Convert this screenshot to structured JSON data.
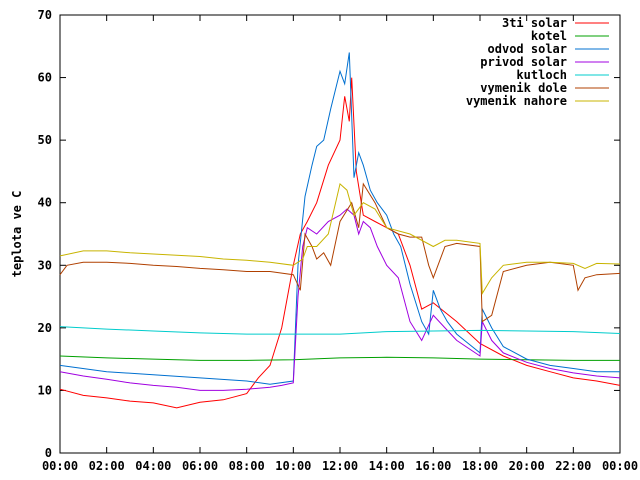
{
  "chart_data": {
    "type": "line",
    "title": "",
    "xlabel": "",
    "ylabel": "teplota ve C",
    "xlim": [
      "00:00",
      "24:00"
    ],
    "ylim": [
      0,
      70
    ],
    "x_ticks": [
      "00:00",
      "02:00",
      "04:00",
      "06:00",
      "08:00",
      "10:00",
      "12:00",
      "14:00",
      "16:00",
      "18:00",
      "20:00",
      "22:00",
      "00:00"
    ],
    "y_ticks": [
      0,
      10,
      20,
      30,
      40,
      50,
      60,
      70
    ],
    "grid": false,
    "legend_position": "top-right",
    "series": [
      {
        "name": "3ti solar",
        "color": "#ff0000",
        "points": [
          [
            0,
            10.2
          ],
          [
            1,
            9.2
          ],
          [
            2,
            8.8
          ],
          [
            3,
            8.3
          ],
          [
            4,
            8.0
          ],
          [
            5,
            7.2
          ],
          [
            6,
            8.1
          ],
          [
            7,
            8.5
          ],
          [
            8,
            9.5
          ],
          [
            8.5,
            12
          ],
          [
            9,
            14
          ],
          [
            9.5,
            20
          ],
          [
            10,
            30
          ],
          [
            10.3,
            35
          ],
          [
            10.6,
            37
          ],
          [
            11,
            40
          ],
          [
            11.5,
            46
          ],
          [
            12,
            50
          ],
          [
            12.2,
            57
          ],
          [
            12.4,
            53
          ],
          [
            12.5,
            60
          ],
          [
            12.7,
            45
          ],
          [
            13,
            38
          ],
          [
            13.5,
            37
          ],
          [
            14,
            36
          ],
          [
            14.5,
            35
          ],
          [
            15,
            30
          ],
          [
            15.5,
            23
          ],
          [
            16,
            24
          ],
          [
            17,
            21
          ],
          [
            18,
            17.5
          ],
          [
            19,
            15.5
          ],
          [
            20,
            14
          ],
          [
            21,
            13
          ],
          [
            22,
            12
          ],
          [
            23,
            11.5
          ],
          [
            24,
            10.8
          ]
        ]
      },
      {
        "name": "kotel",
        "color": "#00a000",
        "points": [
          [
            0,
            15.5
          ],
          [
            2,
            15.2
          ],
          [
            4,
            15.0
          ],
          [
            6,
            14.8
          ],
          [
            8,
            14.8
          ],
          [
            10,
            14.9
          ],
          [
            12,
            15.2
          ],
          [
            14,
            15.3
          ],
          [
            16,
            15.2
          ],
          [
            18,
            15.0
          ],
          [
            20,
            14.9
          ],
          [
            22,
            14.8
          ],
          [
            24,
            14.8
          ]
        ]
      },
      {
        "name": "odvod solar",
        "color": "#0070d0",
        "points": [
          [
            0,
            14
          ],
          [
            2,
            13
          ],
          [
            4,
            12.5
          ],
          [
            6,
            12
          ],
          [
            8,
            11.5
          ],
          [
            9,
            11
          ],
          [
            10,
            11.5
          ],
          [
            10.2,
            30
          ],
          [
            10.5,
            41
          ],
          [
            10.8,
            46
          ],
          [
            11,
            49
          ],
          [
            11.3,
            50
          ],
          [
            11.6,
            55
          ],
          [
            12,
            61
          ],
          [
            12.2,
            59
          ],
          [
            12.4,
            64
          ],
          [
            12.6,
            44
          ],
          [
            12.8,
            48
          ],
          [
            13,
            46
          ],
          [
            13.3,
            42
          ],
          [
            13.6,
            40
          ],
          [
            14,
            38
          ],
          [
            14.3,
            35
          ],
          [
            14.6,
            33
          ],
          [
            15,
            27
          ],
          [
            15.5,
            21
          ],
          [
            15.8,
            19
          ],
          [
            16,
            26
          ],
          [
            16.3,
            23
          ],
          [
            16.6,
            21
          ],
          [
            17,
            19
          ],
          [
            17.5,
            17.5
          ],
          [
            18,
            16
          ],
          [
            18.1,
            23
          ],
          [
            18.5,
            20
          ],
          [
            19,
            17
          ],
          [
            20,
            15
          ],
          [
            21,
            14
          ],
          [
            22,
            13.5
          ],
          [
            23,
            13
          ],
          [
            24,
            13
          ]
        ]
      },
      {
        "name": "privod solar",
        "color": "#a000e0",
        "points": [
          [
            0,
            13
          ],
          [
            1,
            12.3
          ],
          [
            2,
            11.8
          ],
          [
            3,
            11.2
          ],
          [
            4,
            10.8
          ],
          [
            5,
            10.5
          ],
          [
            6,
            10
          ],
          [
            7,
            10
          ],
          [
            8,
            10.2
          ],
          [
            9,
            10.5
          ],
          [
            9.5,
            10.8
          ],
          [
            10,
            11.2
          ],
          [
            10.2,
            25
          ],
          [
            10.4,
            33
          ],
          [
            10.6,
            36
          ],
          [
            11,
            35
          ],
          [
            11.5,
            37
          ],
          [
            12,
            38
          ],
          [
            12.3,
            39
          ],
          [
            12.6,
            38
          ],
          [
            12.8,
            35
          ],
          [
            13,
            37
          ],
          [
            13.3,
            36
          ],
          [
            13.6,
            33
          ],
          [
            14,
            30
          ],
          [
            14.5,
            28
          ],
          [
            15,
            21
          ],
          [
            15.5,
            18
          ],
          [
            16,
            22
          ],
          [
            16.5,
            20
          ],
          [
            17,
            18
          ],
          [
            18,
            15.5
          ],
          [
            18.1,
            21
          ],
          [
            18.5,
            18
          ],
          [
            19,
            16
          ],
          [
            20,
            14.5
          ],
          [
            21,
            13.5
          ],
          [
            22,
            12.8
          ],
          [
            23,
            12.3
          ],
          [
            24,
            12
          ]
        ]
      },
      {
        "name": "kutloch",
        "color": "#00cccc",
        "points": [
          [
            0,
            20.2
          ],
          [
            2,
            19.8
          ],
          [
            4,
            19.5
          ],
          [
            6,
            19.2
          ],
          [
            8,
            19.0
          ],
          [
            10,
            19.0
          ],
          [
            12,
            19.0
          ],
          [
            14,
            19.4
          ],
          [
            16,
            19.5
          ],
          [
            18,
            19.6
          ],
          [
            20,
            19.5
          ],
          [
            22,
            19.4
          ],
          [
            24,
            19.1
          ]
        ]
      },
      {
        "name": "vymenik dole",
        "color": "#b04000",
        "points": [
          [
            0,
            28.5
          ],
          [
            0.3,
            30
          ],
          [
            1,
            30.5
          ],
          [
            2,
            30.5
          ],
          [
            3,
            30.3
          ],
          [
            4,
            30
          ],
          [
            5,
            29.8
          ],
          [
            6,
            29.5
          ],
          [
            7,
            29.3
          ],
          [
            8,
            29
          ],
          [
            9,
            29
          ],
          [
            10,
            28.5
          ],
          [
            10.3,
            26
          ],
          [
            10.5,
            35
          ],
          [
            10.8,
            33
          ],
          [
            11,
            31
          ],
          [
            11.3,
            32
          ],
          [
            11.6,
            30
          ],
          [
            12,
            37
          ],
          [
            12.5,
            40
          ],
          [
            12.8,
            36
          ],
          [
            13,
            43
          ],
          [
            13.5,
            40
          ],
          [
            14,
            36
          ],
          [
            14.5,
            35
          ],
          [
            15,
            34.5
          ],
          [
            15.5,
            34.5
          ],
          [
            15.8,
            30
          ],
          [
            16,
            28
          ],
          [
            16.5,
            33
          ],
          [
            17,
            33.5
          ],
          [
            18,
            33
          ],
          [
            18.1,
            21
          ],
          [
            18.5,
            22
          ],
          [
            19,
            29
          ],
          [
            20,
            30
          ],
          [
            21,
            30.5
          ],
          [
            22,
            30
          ],
          [
            22.2,
            26
          ],
          [
            22.5,
            28
          ],
          [
            23,
            28.5
          ],
          [
            24,
            28.7
          ]
        ]
      },
      {
        "name": "vymenik nahore",
        "color": "#c8b400",
        "points": [
          [
            0,
            31.5
          ],
          [
            1,
            32.3
          ],
          [
            2,
            32.3
          ],
          [
            3,
            32.0
          ],
          [
            4,
            31.8
          ],
          [
            5,
            31.6
          ],
          [
            6,
            31.4
          ],
          [
            7,
            31.0
          ],
          [
            8,
            30.8
          ],
          [
            9,
            30.5
          ],
          [
            10,
            30
          ],
          [
            10.4,
            31
          ],
          [
            10.6,
            33
          ],
          [
            11,
            33
          ],
          [
            11.5,
            35
          ],
          [
            12,
            43
          ],
          [
            12.3,
            42
          ],
          [
            12.6,
            38
          ],
          [
            13,
            40
          ],
          [
            13.5,
            39
          ],
          [
            14,
            36
          ],
          [
            15,
            35
          ],
          [
            16,
            33
          ],
          [
            16.5,
            34
          ],
          [
            17,
            34
          ],
          [
            18,
            33.5
          ],
          [
            18.1,
            25.5
          ],
          [
            18.5,
            28
          ],
          [
            19,
            30
          ],
          [
            20,
            30.5
          ],
          [
            21,
            30.5
          ],
          [
            22,
            30.3
          ],
          [
            22.5,
            29.5
          ],
          [
            23,
            30.3
          ],
          [
            24,
            30.2
          ]
        ]
      }
    ]
  }
}
